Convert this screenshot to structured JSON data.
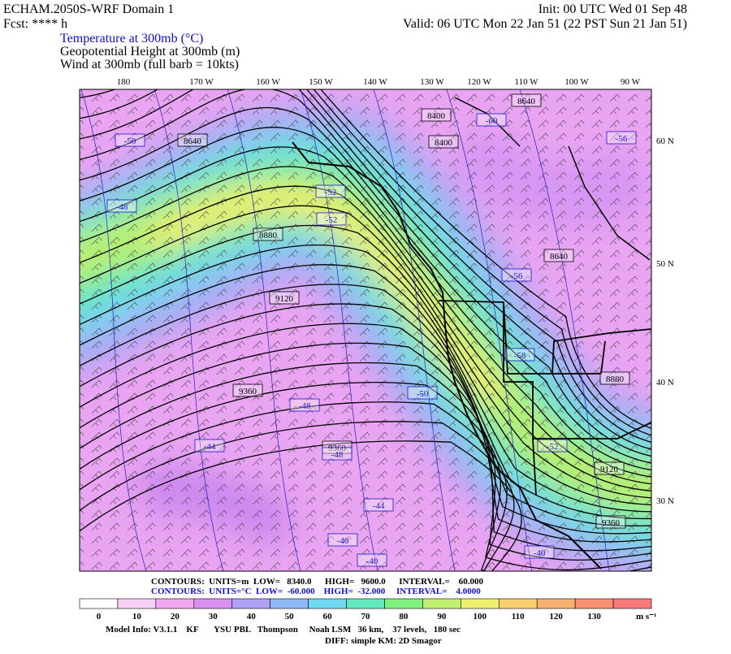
{
  "header": {
    "title": "ECHAM.2050S-WRF Domain 1",
    "init": "Init: 00 UTC Wed 01 Sep 48",
    "fcst": "Fcst: **** h",
    "valid": "Valid: 06 UTC Mon 22 Jan 51 (22 PST Sun 21 Jan 51)",
    "fields": [
      "Temperature at 300mb (°C)",
      "Geopotential Height at 300mb (m)",
      "Wind at 300mb (full barb = 10kts)"
    ]
  },
  "map": {
    "longitudes": [
      "180",
      "170 W",
      "160 W",
      "150 W",
      "140 W",
      "130 W",
      "120 W",
      "110 W",
      "100 W",
      "90 W"
    ],
    "latitudes": [
      "60 N",
      "50 N",
      "40 N",
      "30 N"
    ],
    "height_labels": [
      "8640",
      "8400",
      "8400",
      "8640",
      "8880",
      "9120",
      "9360",
      "9360",
      "8640",
      "8880",
      "9120",
      "9360"
    ],
    "temperature_labels": [
      "-50",
      "-48",
      "-52",
      "-52",
      "-60",
      "-56",
      "-56",
      "-58",
      "-50",
      "-48",
      "-44",
      "-48",
      "-52",
      "-44",
      "-40",
      "-40",
      "-40"
    ]
  },
  "footer": {
    "contours_height": "CONTOURS:  UNITS=m  LOW=   8340.0      HIGH=   9600.0      INTERVAL=    60.000",
    "contours_temp": "CONTOURS:  UNITS=°C  LOW=  -60.000    HIGH=  -32.000     INTERVAL=    4.0000",
    "colorbar_labels": [
      "0",
      "10",
      "20",
      "30",
      "40",
      "50",
      "60",
      "70",
      "80",
      "90",
      "100",
      "110",
      "120",
      "130"
    ],
    "colorbar_units": "m s⁻¹",
    "model_info": "Model Info: V3.1.1    KF       YSU PBL   Thompson     Noah LSM   36 km,    37 levels,   180 sec",
    "diff": "DIFF: simple KM: 2D Smagor"
  }
}
